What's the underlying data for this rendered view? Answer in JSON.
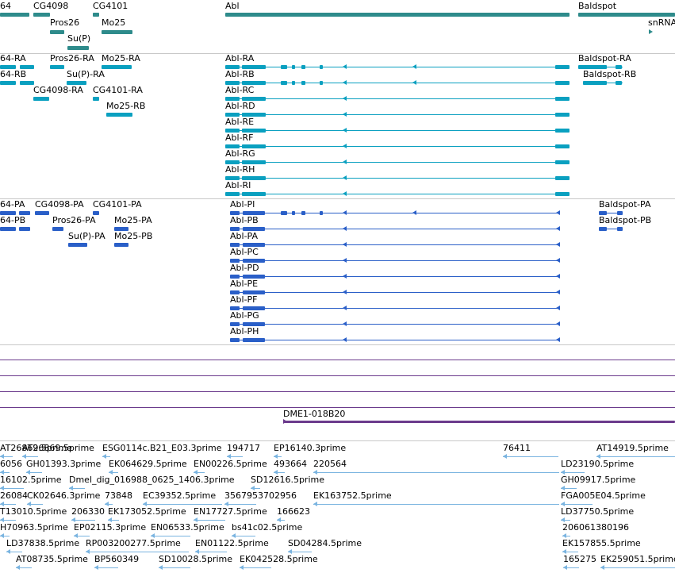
{
  "colors": {
    "gene": "#2e8b8b",
    "transcript": "#0aa0c0",
    "protein": "#2a5fc8",
    "clone": "#6b3a8c",
    "est": "#7ab4e0",
    "separator": "#c8c8c8"
  },
  "genes": [
    {
      "label": "64"
    },
    {
      "label": "CG4098"
    },
    {
      "label": "CG4101"
    },
    {
      "label": "Pros26"
    },
    {
      "label": "Mo25"
    },
    {
      "label": "Su(P)"
    },
    {
      "label": "Abl"
    },
    {
      "label": "Baldspot"
    },
    {
      "label": "snRNA"
    }
  ],
  "transcripts": [
    {
      "label": "64-RA"
    },
    {
      "label": "64-RB"
    },
    {
      "label": "Pros26-RA"
    },
    {
      "label": "Mo25-RA"
    },
    {
      "label": "Su(P)-RA"
    },
    {
      "label": "CG4098-RA"
    },
    {
      "label": "CG4101-RA"
    },
    {
      "label": "Mo25-RB"
    },
    {
      "label": "Abl-RA"
    },
    {
      "label": "Abl-RB"
    },
    {
      "label": "Abl-RC"
    },
    {
      "label": "Abl-RD"
    },
    {
      "label": "Abl-RE"
    },
    {
      "label": "Abl-RF"
    },
    {
      "label": "Abl-RG"
    },
    {
      "label": "Abl-RH"
    },
    {
      "label": "Abl-RI"
    },
    {
      "label": "Baldspot-RA"
    },
    {
      "label": "Baldspot-RB"
    }
  ],
  "proteins": [
    {
      "label": "64-PA"
    },
    {
      "label": "CG4098-PA"
    },
    {
      "label": "CG4101-PA"
    },
    {
      "label": "64-PB"
    },
    {
      "label": "Pros26-PA"
    },
    {
      "label": "Mo25-PA"
    },
    {
      "label": "Su(P)-PA"
    },
    {
      "label": "Mo25-PB"
    },
    {
      "label": "Abl-PI"
    },
    {
      "label": "Abl-PB"
    },
    {
      "label": "Abl-PA"
    },
    {
      "label": "Abl-PC"
    },
    {
      "label": "Abl-PD"
    },
    {
      "label": "Abl-PE"
    },
    {
      "label": "Abl-PF"
    },
    {
      "label": "Abl-PG"
    },
    {
      "label": "Abl-PH"
    },
    {
      "label": "Baldspot-PA"
    },
    {
      "label": "Baldspot-PB"
    }
  ],
  "clone": {
    "label": "DME1-018B20"
  },
  "ests": [
    {
      "label": "AT26869.5prime"
    },
    {
      "label": "ESG0114c.B21_E03.3prime"
    },
    {
      "label": "194717"
    },
    {
      "label": "EP16140.3prime"
    },
    {
      "label": "76411"
    },
    {
      "label": "AT14919.5prime"
    },
    {
      "label": "6056"
    },
    {
      "label": "GH01393.3prime"
    },
    {
      "label": "EK064629.5prime"
    },
    {
      "label": "EN00226.5prime"
    },
    {
      "label": "493664"
    },
    {
      "label": "220564"
    },
    {
      "label": "LD23190.5prime"
    },
    {
      "label": "16102.5prime"
    },
    {
      "label": "Dmel_dig_016988_0625_1406.3prime"
    },
    {
      "label": "SD12616.5prime"
    },
    {
      "label": "GH09917.5prime"
    },
    {
      "label": "26084"
    },
    {
      "label": "CK02646.3prime"
    },
    {
      "label": "73848"
    },
    {
      "label": "EC39352.5prime"
    },
    {
      "label": "3567953702956"
    },
    {
      "label": "EK163752.5prime"
    },
    {
      "label": "FGA005E04.5prime"
    },
    {
      "label": "T13010.5prime"
    },
    {
      "label": "206330"
    },
    {
      "label": "EK173052.5prime"
    },
    {
      "label": "EN17727.5prime"
    },
    {
      "label": "166623"
    },
    {
      "label": "LD37750.5prime"
    },
    {
      "label": "H70963.5prime"
    },
    {
      "label": "EP02115.3prime"
    },
    {
      "label": "EN06533.5prime"
    },
    {
      "label": "bs41c02.5prime"
    },
    {
      "label": "206061380196"
    },
    {
      "label": "LD37838.5prime"
    },
    {
      "label": "RP003200277.5prime"
    },
    {
      "label": "EN01122.5prime"
    },
    {
      "label": "SD04284.5prime"
    },
    {
      "label": "EK157855.5prime"
    },
    {
      "label": "AT08735.5prime"
    },
    {
      "label": "BP560349"
    },
    {
      "label": "SD10028.5prime"
    },
    {
      "label": "EK042528.5prime"
    },
    {
      "label": "165275"
    },
    {
      "label": "EK259051.5prime"
    }
  ]
}
